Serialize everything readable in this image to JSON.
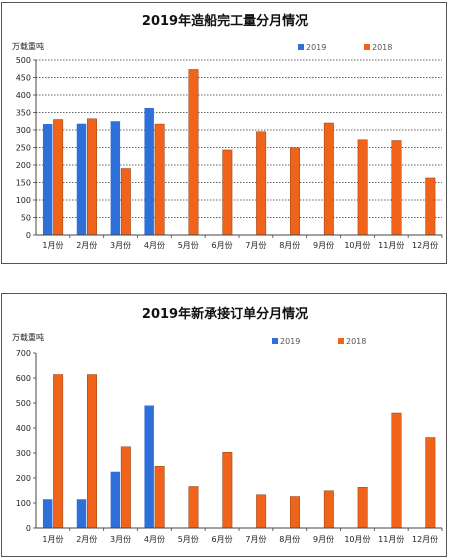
{
  "colors": {
    "y2019": "#2e6fd9",
    "y2018": "#f0631a",
    "axis": "#444444",
    "grid": "#333333"
  },
  "chart_data": [
    {
      "type": "bar",
      "title": "2019年造船完工量分月情况",
      "ylabel": "万载重吨",
      "ylim": [
        0,
        500
      ],
      "yticks": [
        0,
        50,
        100,
        150,
        200,
        250,
        300,
        350,
        400,
        450,
        500
      ],
      "grid": true,
      "legend_position": "top-right",
      "categories": [
        "1月份",
        "2月份",
        "3月份",
        "4月份",
        "5月份",
        "6月份",
        "7月份",
        "8月份",
        "9月份",
        "10月份",
        "11月份",
        "12月份"
      ],
      "series": [
        {
          "name": "2019",
          "values": [
            317,
            318,
            325,
            363,
            null,
            null,
            null,
            null,
            null,
            null,
            null,
            null
          ]
        },
        {
          "name": "2018",
          "values": [
            330,
            332,
            190,
            317,
            473,
            243,
            295,
            249,
            320,
            272,
            270,
            163
          ]
        }
      ]
    },
    {
      "type": "bar",
      "title": "2019年新承接订单分月情况",
      "ylabel": "万载重吨",
      "ylim": [
        0,
        700
      ],
      "yticks": [
        0,
        100,
        200,
        300,
        400,
        500,
        600,
        700
      ],
      "grid": false,
      "legend_position": "top-right",
      "categories": [
        "1月份",
        "2月份",
        "3月份",
        "4月份",
        "5月份",
        "6月份",
        "7月份",
        "8月份",
        "9月份",
        "10月份",
        "11月份",
        "12月份"
      ],
      "series": [
        {
          "name": "2019",
          "values": [
            115,
            115,
            225,
            490,
            null,
            null,
            null,
            null,
            null,
            null,
            null,
            null
          ]
        },
        {
          "name": "2018",
          "values": [
            614,
            614,
            325,
            247,
            166,
            303,
            133,
            126,
            149,
            163,
            460,
            362
          ]
        }
      ]
    }
  ]
}
